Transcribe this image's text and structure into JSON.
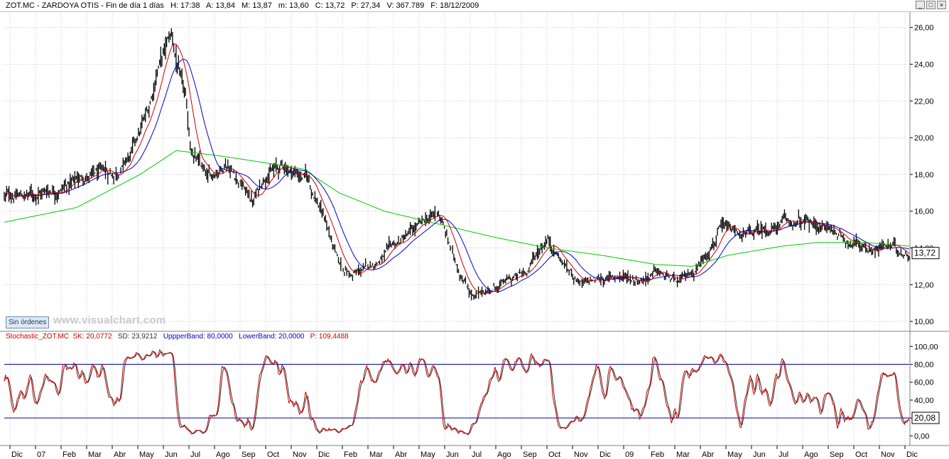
{
  "window": {
    "title_symbol": "ZOT.MC - ZARDOYA OTIS - Fin de día 1 días",
    "stats": [
      {
        "label": "H:",
        "value": "17:38"
      },
      {
        "label": "A:",
        "value": "13,84"
      },
      {
        "label": "M:",
        "value": "13,87"
      },
      {
        "label": "m:",
        "value": "13,60"
      },
      {
        "label": "C:",
        "value": "13,72"
      },
      {
        "label": "P:",
        "value": "27,34"
      },
      {
        "label": "V:",
        "value": "367.789"
      },
      {
        "label": "F:",
        "value": "18/12/2009"
      }
    ],
    "buttons": [
      "_",
      "□",
      "×"
    ]
  },
  "sin_ordenes_label": "Sin órdenes",
  "watermark": "www.visualchart.com",
  "indicator_legend": {
    "name": "Stochastic_ZOT.MC",
    "sk_label": "SK: 20,0772",
    "sd_label": "SD: 23,9212",
    "upper_label": "UppperBand: 80,0000",
    "lower_label": "LowerBand: 20,0000",
    "p_label": "P: 109,4488"
  },
  "colors": {
    "price": "#000000",
    "ma_fast": "#cc0000",
    "ma_mid": "#0000cc",
    "ma_slow": "#00cc00",
    "stoch_sk": "#cc0000",
    "stoch_sd": "#333333",
    "bands": "#0000aa",
    "grid": "#c8c8c8"
  },
  "chart_data": [
    {
      "type": "candlestick",
      "series_names": [],
      "ylim": [
        9.5,
        26.8
      ],
      "y_ticks": [
        "10,00",
        "12,00",
        "14,00",
        "16,00",
        "18,00",
        "20,00",
        "22,00",
        "24,00",
        "26,00"
      ],
      "last_value": "13,72",
      "x_ticks": [
        "Dic",
        "07",
        "Feb",
        "Mar",
        "Abr",
        "May",
        "Jun",
        "Jul",
        "Ago",
        "Sep",
        "Oct",
        "Nov",
        "Dic",
        "Feb",
        "Mar",
        "Abr",
        "May",
        "Jun",
        "Jul",
        "Ago",
        "Sep",
        "Oct",
        "Nov",
        "Dic",
        "09",
        "Feb",
        "Mar",
        "Abr",
        "May",
        "Jun",
        "Jul",
        "Ago",
        "Sep",
        "Oct",
        "Nov",
        "Dic"
      ],
      "close_keypoints": [
        [
          0,
          16.8
        ],
        [
          0.03,
          16.9
        ],
        [
          0.06,
          17.3
        ],
        [
          0.09,
          17.9
        ],
        [
          0.12,
          18.0
        ],
        [
          0.14,
          19.0
        ],
        [
          0.16,
          21.5
        ],
        [
          0.17,
          24.0
        ],
        [
          0.185,
          25.5
        ],
        [
          0.195,
          23.0
        ],
        [
          0.2,
          22.0
        ],
        [
          0.205,
          19.5
        ],
        [
          0.225,
          17.6
        ],
        [
          0.245,
          18.8
        ],
        [
          0.26,
          17.7
        ],
        [
          0.275,
          16.5
        ],
        [
          0.29,
          18.2
        ],
        [
          0.31,
          18.4
        ],
        [
          0.335,
          17.8
        ],
        [
          0.355,
          15.5
        ],
        [
          0.37,
          13.0
        ],
        [
          0.385,
          12.5
        ],
        [
          0.405,
          13.0
        ],
        [
          0.43,
          14.0
        ],
        [
          0.455,
          15.0
        ],
        [
          0.48,
          15.9
        ],
        [
          0.5,
          13.0
        ],
        [
          0.52,
          11.3
        ],
        [
          0.54,
          11.8
        ],
        [
          0.575,
          12.6
        ],
        [
          0.6,
          14.6
        ],
        [
          0.62,
          13.0
        ],
        [
          0.64,
          12.0
        ],
        [
          0.66,
          12.3
        ],
        [
          0.68,
          12.5
        ],
        [
          0.7,
          12.3
        ],
        [
          0.72,
          12.7
        ],
        [
          0.745,
          12.0
        ],
        [
          0.765,
          12.9
        ],
        [
          0.79,
          15.0
        ],
        [
          0.82,
          14.6
        ],
        [
          0.86,
          15.3
        ],
        [
          0.885,
          15.3
        ],
        [
          0.91,
          15.1
        ],
        [
          0.935,
          14.4
        ],
        [
          0.955,
          14.0
        ],
        [
          0.975,
          14.1
        ],
        [
          1.0,
          13.72
        ]
      ],
      "ma_slow_keypoints": [
        [
          0,
          15.4
        ],
        [
          0.08,
          16.2
        ],
        [
          0.15,
          18.0
        ],
        [
          0.19,
          19.3
        ],
        [
          0.24,
          19.0
        ],
        [
          0.28,
          18.7
        ],
        [
          0.33,
          18.3
        ],
        [
          0.37,
          17.0
        ],
        [
          0.42,
          16.0
        ],
        [
          0.48,
          15.3
        ],
        [
          0.54,
          14.6
        ],
        [
          0.6,
          14.0
        ],
        [
          0.66,
          13.6
        ],
        [
          0.72,
          13.1
        ],
        [
          0.76,
          13.0
        ],
        [
          0.8,
          13.6
        ],
        [
          0.86,
          14.1
        ],
        [
          0.9,
          14.3
        ],
        [
          0.95,
          14.3
        ],
        [
          1.0,
          14.1
        ]
      ]
    },
    {
      "type": "line",
      "series_names": [
        "SK",
        "SD"
      ],
      "ylim": [
        -10,
        105
      ],
      "y_ticks": [
        "0,00",
        "20,00",
        "40,00",
        "60,00",
        "80,00",
        "100,00"
      ],
      "bands": [
        80,
        20
      ],
      "last_value": "20,08"
    }
  ]
}
